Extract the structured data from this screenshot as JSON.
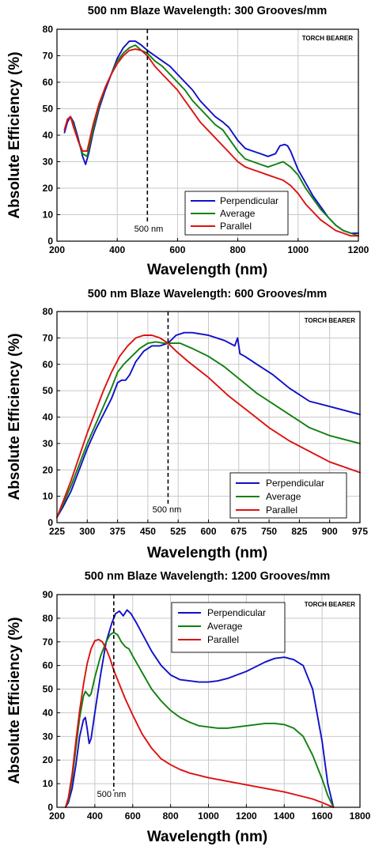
{
  "colors": {
    "perpendicular": "#1010c8",
    "average": "#108010",
    "parallel": "#dd1111"
  },
  "chart_data": [
    {
      "type": "line",
      "title": "500 nm Blaze Wavelength: 300 Grooves/mm",
      "xlabel": "Wavelength (nm)",
      "ylabel": "Absolute Efficiency (%)",
      "xlim": [
        200,
        1200
      ],
      "ylim": [
        0,
        80
      ],
      "xticks": [
        200,
        400,
        600,
        800,
        1000,
        1200
      ],
      "yticks": [
        0,
        10,
        20,
        30,
        40,
        50,
        60,
        70,
        80
      ],
      "grid": true,
      "legend_position": "bottom-center",
      "brand": "TORCH BEARER",
      "marker": {
        "x": 500,
        "label": "500 nm"
      },
      "series": [
        {
          "name": "Perpendicular",
          "color_key": "perpendicular",
          "x": [
            225,
            235,
            245,
            255,
            270,
            285,
            295,
            305,
            320,
            340,
            360,
            380,
            400,
            420,
            440,
            460,
            480,
            500,
            525,
            550,
            575,
            600,
            625,
            650,
            675,
            700,
            725,
            750,
            770,
            800,
            825,
            850,
            875,
            900,
            925,
            940,
            955,
            965,
            975,
            1000,
            1025,
            1050,
            1075,
            1100,
            1125,
            1150,
            1175,
            1200
          ],
          "y": [
            41,
            45,
            47,
            45,
            39,
            32,
            29,
            33,
            41,
            50,
            57,
            63,
            69,
            73,
            75.5,
            75.5,
            74,
            72,
            70,
            68,
            66,
            63,
            60,
            57,
            53,
            50,
            47,
            45,
            43,
            38,
            35,
            34,
            33,
            32,
            33,
            36,
            36.5,
            36,
            34,
            27,
            22,
            17,
            13,
            9,
            6,
            4,
            3,
            3
          ]
        },
        {
          "name": "Average",
          "color_key": "average",
          "x": [
            225,
            235,
            245,
            255,
            270,
            285,
            300,
            320,
            340,
            360,
            380,
            400,
            420,
            440,
            460,
            480,
            500,
            525,
            550,
            575,
            600,
            625,
            650,
            675,
            700,
            725,
            750,
            775,
            800,
            825,
            850,
            875,
            900,
            925,
            950,
            975,
            1000,
            1025,
            1050,
            1075,
            1100,
            1125,
            1150,
            1175,
            1200
          ],
          "y": [
            42,
            46,
            47,
            44,
            38,
            33,
            32,
            42,
            51,
            58,
            63,
            68,
            71,
            73,
            74,
            72,
            71,
            68,
            66,
            63,
            60,
            57,
            53,
            50,
            47,
            44,
            42,
            38,
            34,
            31,
            30,
            29,
            28,
            29,
            30,
            28,
            25,
            20,
            16,
            12,
            9,
            6,
            4,
            3,
            2
          ]
        },
        {
          "name": "Parallel",
          "color_key": "parallel",
          "x": [
            225,
            235,
            245,
            255,
            270,
            285,
            300,
            320,
            340,
            360,
            380,
            400,
            420,
            440,
            460,
            480,
            500,
            525,
            550,
            575,
            600,
            625,
            650,
            675,
            700,
            725,
            750,
            775,
            800,
            825,
            850,
            875,
            900,
            925,
            950,
            975,
            1000,
            1025,
            1050,
            1075,
            1100,
            1125,
            1150,
            1175,
            1200
          ],
          "y": [
            42,
            46,
            47,
            43,
            38,
            34,
            34,
            44,
            52,
            58,
            63,
            67,
            70,
            72,
            72.5,
            72,
            70,
            66,
            63,
            60,
            57,
            53,
            49,
            45,
            42,
            39,
            36,
            33,
            30,
            28,
            27,
            26,
            25,
            24,
            23,
            21,
            18,
            14,
            11,
            8,
            6,
            4,
            3,
            2,
            2
          ]
        }
      ]
    },
    {
      "type": "line",
      "title": "500 nm Blaze Wavelength: 600 Grooves/mm",
      "xlabel": "Wavelength (nm)",
      "ylabel": "Absolute Efficiency (%)",
      "xlim": [
        225,
        975
      ],
      "ylim": [
        0,
        80
      ],
      "xticks": [
        225,
        300,
        375,
        450,
        525,
        600,
        675,
        750,
        825,
        900,
        975
      ],
      "yticks": [
        0,
        10,
        20,
        30,
        40,
        50,
        60,
        70,
        80
      ],
      "grid": true,
      "legend_position": "bottom-right",
      "brand": "TORCH BEARER",
      "marker": {
        "x": 500,
        "label": "500 nm"
      },
      "series": [
        {
          "name": "Perpendicular",
          "color_key": "perpendicular",
          "x": [
            225,
            240,
            260,
            280,
            300,
            320,
            340,
            360,
            375,
            385,
            395,
            405,
            420,
            440,
            460,
            480,
            500,
            520,
            540,
            560,
            600,
            640,
            665,
            672,
            678,
            690,
            720,
            760,
            800,
            850,
            900,
            975
          ],
          "y": [
            2,
            6,
            12,
            20,
            28,
            35,
            41,
            47,
            53,
            54,
            54,
            56,
            61,
            65,
            67,
            67,
            68,
            71,
            72,
            72,
            71,
            69,
            67,
            70,
            64,
            63,
            60,
            56,
            51,
            46,
            44,
            41
          ]
        },
        {
          "name": "Average",
          "color_key": "average",
          "x": [
            225,
            240,
            260,
            280,
            300,
            320,
            340,
            360,
            375,
            390,
            410,
            430,
            450,
            470,
            490,
            510,
            530,
            560,
            600,
            640,
            680,
            720,
            760,
            800,
            850,
            900,
            975
          ],
          "y": [
            2,
            7,
            14,
            22,
            30,
            37,
            44,
            51,
            57,
            60,
            63,
            66,
            68,
            68.5,
            68,
            68,
            68,
            66,
            63,
            59,
            54,
            49,
            45,
            41,
            36,
            33,
            30
          ]
        },
        {
          "name": "Parallel",
          "color_key": "parallel",
          "x": [
            225,
            240,
            260,
            280,
            300,
            320,
            340,
            360,
            380,
            400,
            420,
            440,
            460,
            480,
            500,
            520,
            550,
            600,
            650,
            700,
            750,
            800,
            850,
            900,
            975
          ],
          "y": [
            2,
            8,
            16,
            25,
            34,
            42,
            50,
            57,
            63,
            67,
            70,
            71,
            71,
            70,
            68,
            65,
            61,
            55,
            48,
            42,
            36,
            31,
            27,
            23,
            19
          ]
        }
      ]
    },
    {
      "type": "line",
      "title": "500 nm Blaze Wavelength: 1200 Grooves/mm",
      "xlabel": "Wavelength (nm)",
      "ylabel": "Absolute Efficiency (%)",
      "xlim": [
        200,
        1800
      ],
      "ylim": [
        0,
        90
      ],
      "xticks": [
        200,
        400,
        600,
        800,
        1000,
        1200,
        1400,
        1600,
        1800
      ],
      "yticks": [
        0,
        10,
        20,
        30,
        40,
        50,
        60,
        70,
        80,
        90
      ],
      "grid": true,
      "legend_position": "top-center",
      "brand": "TORCH BEARER",
      "marker": {
        "x": 500,
        "label": "500 nm"
      },
      "series": [
        {
          "name": "Perpendicular",
          "color_key": "perpendicular",
          "x": [
            245,
            260,
            280,
            300,
            320,
            340,
            350,
            360,
            370,
            380,
            400,
            430,
            460,
            490,
            510,
            530,
            550,
            570,
            590,
            620,
            660,
            700,
            750,
            800,
            850,
            900,
            950,
            1000,
            1050,
            1100,
            1150,
            1200,
            1250,
            1300,
            1350,
            1400,
            1450,
            1500,
            1550,
            1600,
            1630,
            1660
          ],
          "y": [
            0,
            2,
            8,
            18,
            30,
            37,
            38,
            33,
            27,
            29,
            40,
            56,
            70,
            78,
            82,
            83,
            81,
            83.5,
            82,
            78,
            72,
            66,
            60,
            56,
            54,
            53.5,
            53,
            53,
            53.5,
            54.5,
            56,
            57.5,
            59.5,
            61.5,
            63,
            63.5,
            62.5,
            60,
            50,
            28,
            10,
            0
          ]
        },
        {
          "name": "Average",
          "color_key": "average",
          "x": [
            245,
            260,
            280,
            300,
            320,
            340,
            350,
            360,
            370,
            380,
            400,
            430,
            460,
            480,
            500,
            520,
            540,
            560,
            580,
            600,
            650,
            700,
            750,
            800,
            850,
            900,
            950,
            1000,
            1050,
            1100,
            1150,
            1200,
            1250,
            1300,
            1350,
            1400,
            1450,
            1500,
            1550,
            1600,
            1630,
            1660
          ],
          "y": [
            0,
            3,
            12,
            25,
            38,
            47,
            49,
            48,
            47,
            48,
            55,
            64,
            70,
            73,
            74,
            73,
            70,
            68,
            67,
            64,
            57,
            50,
            45,
            41,
            38,
            36,
            34.5,
            34,
            33.5,
            33.5,
            34,
            34.5,
            35,
            35.5,
            35.5,
            35,
            33.5,
            30,
            22,
            12,
            5,
            0
          ]
        },
        {
          "name": "Parallel",
          "color_key": "parallel",
          "x": [
            245,
            260,
            280,
            300,
            320,
            340,
            360,
            380,
            400,
            420,
            440,
            460,
            480,
            500,
            530,
            560,
            600,
            650,
            700,
            750,
            800,
            850,
            900,
            950,
            1000,
            1100,
            1200,
            1300,
            1400,
            1500,
            1550,
            1600,
            1630,
            1660
          ],
          "y": [
            0,
            4,
            14,
            28,
            41,
            52,
            61,
            67,
            70.5,
            71,
            70,
            67,
            63,
            58,
            52,
            46,
            39,
            31,
            25,
            20.5,
            18,
            16,
            14.5,
            13.5,
            12.5,
            11,
            9.5,
            8,
            6.5,
            4.5,
            3.5,
            2,
            1,
            0
          ]
        }
      ]
    }
  ]
}
